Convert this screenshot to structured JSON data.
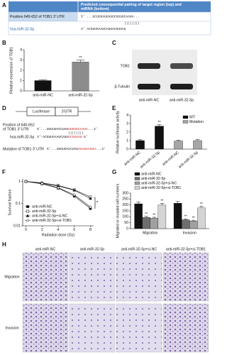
{
  "panels": {
    "labels": [
      "A",
      "B",
      "C",
      "D",
      "E",
      "F",
      "G",
      "H"
    ],
    "a": {
      "header": [
        "Predicted consequential pairing of target region (top) and",
        "miRNA (bottom)"
      ],
      "target": "Position 645-652 of TOB1 3' UTR",
      "target_seq": "5'   ...UCUUUAUUAUUCUGUGCAAUA...",
      "pairing": "||||||||",
      "mirna": "hsa-miR-32-5p",
      "mirna_seq": "3'   ACGUUGAAUCAUUACGUUAU"
    },
    "c": {
      "bands": [
        "TOB1",
        "β-Tubulin"
      ],
      "lanes": [
        "anti-miR-NC",
        "anti-miR-32-5p"
      ]
    },
    "d": {
      "boxes": [
        "Luciferase",
        "3'UTR"
      ],
      "position": [
        "Position of 645-652",
        "of TOB1 3' UTR"
      ],
      "wt_seq": [
        "5'...UUGUUACCUAU",
        "UUGUGCAAUA",
        "...3'"
      ],
      "pairing": "||||||||",
      "mirna": "hsa-miR-32-5p",
      "mirna_seq": [
        "3'-ACGUUGAAUCAUU",
        "ACGUUAU",
        "-5'"
      ],
      "mutation": "Mutation of TOB1 3' UTR",
      "mut_seq": [
        "5'...UUGUUACCUAU",
        "AGAGGAUUU",
        "...3'"
      ]
    },
    "h": {
      "columns": [
        "anti-miR-NC",
        "anti-miR-32-5p",
        "anti-miR-32-5p+si-NC",
        "anti-miR-32-5p+si-TOB1"
      ],
      "rows": [
        "Migration",
        "Invasion"
      ]
    }
  },
  "chart_data": [
    {
      "type": "bar",
      "ylabel": "Relative expression of TOB1",
      "categories": [
        "anti-miR-NC",
        "anti-miR-32-5p"
      ],
      "values": [
        1.0,
        2.8
      ],
      "errors": [
        0.08,
        0.18
      ],
      "colors": [
        "#111111",
        "#8c8c8c"
      ],
      "ylim": [
        0,
        4
      ],
      "yticks": [
        0,
        1,
        2,
        3,
        4
      ],
      "annotations": [
        "**"
      ]
    },
    {
      "type": "bar",
      "ylabel": "Relative luciferase activity",
      "categories": [
        "anti-miR-NC",
        "anti-miR-32-5p",
        "anti-miR-NC",
        "anti-miR-32-5p"
      ],
      "series": [
        {
          "name": "WT",
          "color": "#111111",
          "values": [
            1.0,
            2.7,
            null,
            null
          ],
          "errors": [
            0.1,
            0.15,
            null,
            null
          ]
        },
        {
          "name": "Mutation",
          "color": "#a6a6a6",
          "values": [
            null,
            null,
            0.95,
            1.0
          ],
          "errors": [
            null,
            null,
            0.1,
            0.12
          ]
        }
      ],
      "ylim": [
        0,
        4
      ],
      "yticks": [
        0,
        1,
        2,
        3,
        4
      ],
      "legend": "upper right",
      "annotations": [
        "**"
      ]
    },
    {
      "type": "line",
      "xlabel": "Radiation dose (Gy)",
      "ylabel": "Survival fraction",
      "x": [
        0,
        2,
        4,
        6,
        8
      ],
      "xlim": [
        -0.4,
        8.4
      ],
      "xticks": [
        0,
        2,
        4,
        6,
        8
      ],
      "yscale": "log",
      "ylim": [
        0.01,
        1.3
      ],
      "yticks": [
        0.01,
        0.1,
        1
      ],
      "legend": "lower left",
      "series": [
        {
          "name": "anti-miR-NC",
          "color": "#111111",
          "marker": "square",
          "values": [
            1,
            0.78,
            0.5,
            0.22,
            0.06
          ]
        },
        {
          "name": "anti-miR-32-5p",
          "color": "#111111",
          "marker": "square-open",
          "values": [
            1,
            0.86,
            0.66,
            0.42,
            0.2
          ]
        },
        {
          "name": "anti-miR-32-5p+si-NC",
          "color": "#111111",
          "marker": "triangle",
          "values": [
            1,
            0.84,
            0.62,
            0.4,
            0.17
          ]
        },
        {
          "name": "anti-miR-32-5p+si-TOB1",
          "color": "#111111",
          "marker": "circle-open",
          "values": [
            1,
            0.8,
            0.52,
            0.25,
            0.07
          ]
        }
      ],
      "annotations": [
        "*",
        "*"
      ]
    },
    {
      "type": "bar",
      "ylabel": "Migrated or invaded cell numbers",
      "categories": [
        "Migration",
        "Invasion"
      ],
      "series": [
        {
          "name": "anti-miR-NC",
          "color": "#111111",
          "values": [
            210,
            215
          ],
          "errors": [
            15,
            14
          ]
        },
        {
          "name": "anti-miR-32-5p",
          "color": "#6e6e6e",
          "values": [
            95,
            75
          ],
          "errors": [
            8,
            7
          ]
        },
        {
          "name": "anti-miR-32-5p+si-NC",
          "color": "#a0a0a0",
          "values": [
            88,
            65
          ],
          "errors": [
            8,
            6
          ]
        },
        {
          "name": "anti-miR-32-5p+si-TOB1",
          "color": "#d4d4d4",
          "values": [
            200,
            175
          ],
          "errors": [
            14,
            13
          ]
        }
      ],
      "ylim": [
        0,
        300
      ],
      "yticks": [
        0,
        50,
        100,
        150,
        200,
        250,
        300
      ],
      "legend": "top",
      "annotations": [
        "**",
        "**",
        "**",
        "**",
        "**",
        "**"
      ]
    }
  ]
}
